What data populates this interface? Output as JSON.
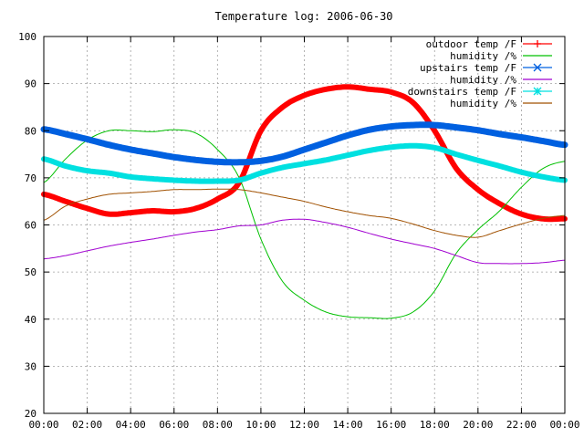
{
  "chart_data": {
    "type": "line",
    "title": "Temperature log: 2006-06-30",
    "xlabel": "",
    "ylabel": "",
    "xlim": [
      0,
      24
    ],
    "ylim": [
      20,
      100
    ],
    "grid": true,
    "legend": "top-right",
    "x_ticks": [
      "00:00",
      "02:00",
      "04:00",
      "06:00",
      "08:00",
      "10:00",
      "12:00",
      "14:00",
      "16:00",
      "18:00",
      "20:00",
      "22:00",
      "00:00"
    ],
    "y_ticks": [
      20,
      30,
      40,
      50,
      60,
      70,
      80,
      90,
      100
    ],
    "x": [
      0,
      1,
      2,
      3,
      4,
      5,
      6,
      7,
      8,
      9,
      10,
      11,
      12,
      13,
      14,
      15,
      16,
      17,
      18,
      19,
      20,
      21,
      22,
      23,
      24
    ],
    "series": [
      {
        "name": "outdoor temp /F",
        "color": "#ff0000",
        "marker": "+",
        "width": 6,
        "values": [
          66.5,
          65,
          63.5,
          62.3,
          62.6,
          63,
          62.8,
          63.5,
          65.5,
          69,
          80,
          85,
          87.5,
          88.8,
          89.3,
          88.8,
          88.2,
          86,
          80,
          72,
          67.5,
          64.5,
          62.3,
          61.3,
          61.3
        ]
      },
      {
        "name": "humidity /%",
        "color": "#00c000",
        "marker": "",
        "width": 1,
        "values": [
          69,
          74,
          78,
          80,
          80,
          79.8,
          80.2,
          79.5,
          76,
          70,
          57,
          48,
          44,
          41.5,
          40.5,
          40.3,
          40.2,
          41.5,
          46,
          54,
          59,
          63,
          68,
          72,
          73.5
        ]
      },
      {
        "name": "upstairs temp /F",
        "color": "#0060e0",
        "marker": "x",
        "width": 7,
        "values": [
          80.3,
          79.3,
          78.2,
          77,
          76,
          75.2,
          74.4,
          73.8,
          73.4,
          73.3,
          73.6,
          74.5,
          76,
          77.5,
          79,
          80.2,
          80.9,
          81.2,
          81.2,
          80.7,
          80.1,
          79.3,
          78.6,
          77.8,
          77
        ]
      },
      {
        "name": "humidity /%",
        "color": "#a000d0",
        "marker": "",
        "width": 1,
        "values": [
          52.8,
          53.5,
          54.5,
          55.5,
          56.3,
          57,
          57.8,
          58.5,
          59,
          59.8,
          60,
          61,
          61.2,
          60.5,
          59.5,
          58.2,
          57,
          56,
          55,
          53.5,
          52,
          51.8,
          51.8,
          52,
          52.5
        ]
      },
      {
        "name": "downstairs temp /F",
        "color": "#00e0e0",
        "marker": "*",
        "width": 6,
        "values": [
          74,
          72.5,
          71.5,
          71,
          70.2,
          69.8,
          69.5,
          69.3,
          69.3,
          69.5,
          71,
          72.2,
          73,
          73.8,
          74.8,
          75.8,
          76.5,
          76.8,
          76.4,
          75,
          73.7,
          72.5,
          71.2,
          70.2,
          69.5
        ]
      },
      {
        "name": "humidity /%",
        "color": "#a05000",
        "marker": "",
        "width": 1,
        "values": [
          61,
          64,
          65.5,
          66.5,
          66.8,
          67.1,
          67.5,
          67.5,
          67.6,
          67.5,
          66.8,
          65.9,
          65,
          63.8,
          62.8,
          62,
          61.4,
          60.2,
          58.8,
          57.8,
          57.4,
          58.8,
          60.2,
          61.4,
          62
        ]
      }
    ]
  }
}
